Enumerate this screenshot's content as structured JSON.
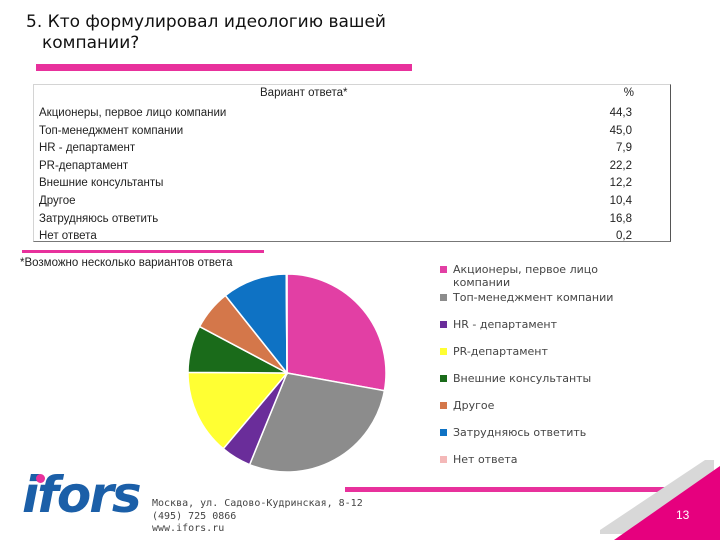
{
  "slide": {
    "title_line1": "5. Кто формулировал идеологию вашей",
    "title_line2": "компании?",
    "page_number": "13",
    "footnote": "*Возможно несколько вариантов ответа",
    "logo_text": "ifors",
    "contact": [
      "Москва, ул. Садово-Кудринская, 8-12",
      "(495) 725 0866",
      "www.ifors.ru"
    ],
    "colors": {
      "accent": "#e8319c",
      "logo": "#1b5fa8",
      "corner": "#e6007e"
    }
  },
  "table": {
    "header_label": "Вариант ответа*",
    "header_value": "%"
  },
  "chart_data": {
    "type": "pie",
    "categories": [
      "Акционеры, первое лицо компании",
      "Топ-менеджмент компании",
      "HR - департамент",
      "PR-департамент",
      "Внешние консультанты",
      "Другое",
      "Затрудняюсь ответить",
      "Нет ответа"
    ],
    "values": [
      44.3,
      45.0,
      7.9,
      22.2,
      12.2,
      10.4,
      16.8,
      0.2
    ],
    "value_labels": [
      "44,3",
      "45,0",
      "7,9",
      "22,2",
      "12,2",
      "10,4",
      "16,8",
      "0,2"
    ],
    "colors": [
      "#e23fa4",
      "#8c8c8c",
      "#6a2d9a",
      "#ffff33",
      "#1a6b1a",
      "#d4774a",
      "#0e72c4",
      "#f4b8b8"
    ],
    "legend": {
      "position": "right",
      "labels": [
        "Акционеры, первое лицо компании",
        "Топ-менеджмент компании",
        "HR - департамент",
        "PR-департамент",
        "Внешние консультанты",
        "Другое",
        "Затрудняюсь ответить",
        "Нет ответа"
      ]
    }
  }
}
